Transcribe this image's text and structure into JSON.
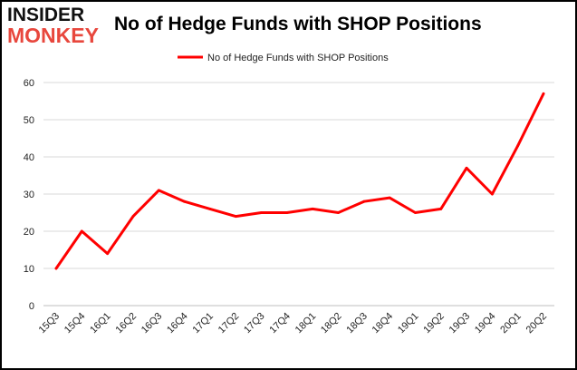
{
  "logo": {
    "line1": "INSIDER",
    "line2": "MONKEY"
  },
  "chart_data": {
    "type": "line",
    "title": "No of Hedge Funds with SHOP Positions",
    "xlabel": "",
    "ylabel": "",
    "categories": [
      "15Q3",
      "15Q4",
      "16Q1",
      "16Q2",
      "16Q3",
      "16Q4",
      "17Q1",
      "17Q2",
      "17Q3",
      "17Q4",
      "18Q1",
      "18Q2",
      "18Q3",
      "18Q4",
      "19Q1",
      "19Q2",
      "19Q3",
      "19Q4",
      "20Q1",
      "20Q2"
    ],
    "series": [
      {
        "name": "No of Hedge Funds with SHOP Positions",
        "color": "#ff0000",
        "values": [
          10,
          20,
          14,
          24,
          31,
          28,
          26,
          24,
          25,
          25,
          26,
          25,
          28,
          29,
          25,
          26,
          37,
          30,
          43,
          57
        ]
      }
    ],
    "ylim": [
      0,
      60
    ],
    "yticks": [
      0,
      10,
      20,
      30,
      40,
      50,
      60
    ],
    "grid": true,
    "legend_position": "top-center"
  }
}
